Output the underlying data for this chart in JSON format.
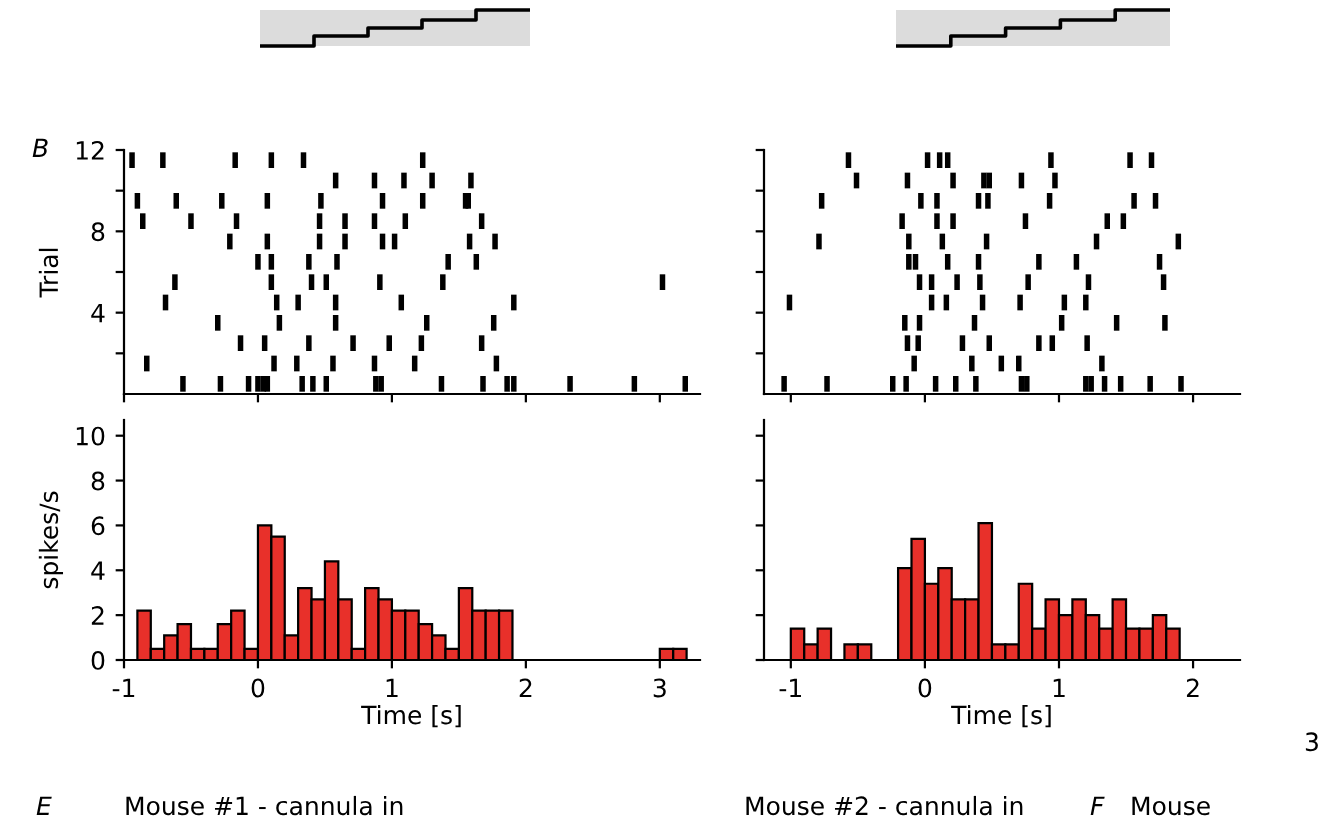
{
  "chart_data": [
    {
      "type": "scatter",
      "ylabel": "Trial",
      "color": "#000000",
      "xlim": [
        -1,
        3.3
      ],
      "xticks": [
        {
          "value": -1,
          "label": null
        },
        {
          "value": 0,
          "label": null
        },
        {
          "value": 1,
          "label": null
        },
        {
          "value": 2,
          "label": null
        },
        {
          "value": 3,
          "label": null
        }
      ],
      "ylim": [
        0,
        12
      ],
      "yticks": [
        {
          "value": 2,
          "label": null
        },
        4,
        {
          "value": 6,
          "label": null
        },
        8,
        {
          "value": 10,
          "label": null
        },
        12
      ],
      "tick_labels": "y",
      "annotations": [
        "B",
        "E",
        "Mouse #1 - cannula in"
      ],
      "x": [
        -0.94,
        -0.71,
        -0.17,
        0.1,
        0.34,
        1.23,
        0.58,
        0.87,
        1.09,
        1.3,
        1.59,
        -0.9,
        -0.61,
        -0.27,
        0.07,
        0.47,
        0.93,
        1.23,
        1.55,
        1.57,
        -0.86,
        -0.5,
        -0.16,
        0.46,
        0.65,
        0.87,
        1.1,
        1.67,
        -0.21,
        0.07,
        0.46,
        0.65,
        0.93,
        1.02,
        1.58,
        1.77,
        0.0,
        0.1,
        0.38,
        0.59,
        1.42,
        1.63,
        -0.62,
        0.1,
        0.4,
        0.51,
        0.91,
        1.38,
        3.02,
        -0.69,
        0.14,
        0.3,
        0.58,
        1.07,
        1.91,
        -0.3,
        0.16,
        0.58,
        1.26,
        1.76,
        -0.13,
        0.05,
        0.38,
        0.71,
        0.98,
        1.22,
        1.67,
        -0.83,
        0.12,
        0.29,
        0.56,
        0.87,
        1.17,
        1.78,
        -0.56,
        -0.28,
        -0.07,
        0.0,
        0.04,
        0.07,
        0.33,
        0.41,
        0.51,
        0.88,
        0.92,
        1.37,
        1.68,
        1.86,
        1.91,
        2.33,
        2.81,
        3.19
      ],
      "values": [
        11.5,
        11.5,
        11.5,
        11.5,
        11.5,
        11.5,
        10.5,
        10.5,
        10.5,
        10.5,
        10.5,
        9.5,
        9.5,
        9.5,
        9.5,
        9.5,
        9.5,
        9.5,
        9.5,
        9.5,
        8.5,
        8.5,
        8.5,
        8.5,
        8.5,
        8.5,
        8.5,
        8.5,
        7.5,
        7.5,
        7.5,
        7.5,
        7.5,
        7.5,
        7.5,
        7.5,
        6.5,
        6.5,
        6.5,
        6.5,
        6.5,
        6.5,
        5.5,
        5.5,
        5.5,
        5.5,
        5.5,
        5.5,
        5.5,
        4.5,
        4.5,
        4.5,
        4.5,
        4.5,
        4.5,
        3.5,
        3.5,
        3.5,
        3.5,
        3.5,
        2.5,
        2.5,
        2.5,
        2.5,
        2.5,
        2.5,
        2.5,
        1.5,
        1.5,
        1.5,
        1.5,
        1.5,
        1.5,
        1.5,
        0.5,
        0.5,
        0.5,
        0.5,
        0.5,
        0.5,
        0.5,
        0.5,
        0.5,
        0.5,
        0.5,
        0.5,
        0.5,
        0.5,
        0.5,
        0.5,
        0.5,
        0.5
      ]
    },
    {
      "type": "histogram",
      "ylabel": "spikes/s",
      "xlabel": "Time [s]",
      "color": "#e8302a",
      "xlim": [
        -1,
        3.3
      ],
      "ylim": [
        0,
        10.7
      ],
      "xticks": [
        -1,
        0,
        1,
        2,
        3
      ],
      "yticks": [
        0,
        2,
        4,
        6,
        8,
        10
      ],
      "bins": [
        -0.9,
        -0.8,
        -0.7,
        -0.6,
        -0.5,
        -0.4,
        -0.3,
        -0.2,
        -0.1,
        0.0,
        0.1,
        0.2,
        0.3,
        0.4,
        0.5,
        0.6,
        0.7,
        0.8,
        0.9,
        1.0,
        1.1,
        1.2,
        1.3,
        1.4,
        1.5,
        1.6,
        1.7,
        1.8,
        1.9,
        2.0,
        2.1,
        2.2,
        2.3,
        2.4,
        2.5,
        2.6,
        2.7,
        2.8,
        2.9,
        3.0,
        3.1,
        3.2
      ],
      "values": [
        2.2,
        0.5,
        1.1,
        1.6,
        0.5,
        0.5,
        1.6,
        2.2,
        0.5,
        6.0,
        5.5,
        1.1,
        3.2,
        2.7,
        4.4,
        2.7,
        0.5,
        3.2,
        2.7,
        2.2,
        2.2,
        1.6,
        1.1,
        0.5,
        3.2,
        2.2,
        2.2,
        2.2,
        0,
        0,
        0,
        0,
        0,
        0,
        0,
        0,
        0,
        0,
        0,
        0.5,
        0.5
      ]
    },
    {
      "type": "scatter",
      "color": "#000000",
      "xlim": [
        -1.2,
        2.35
      ],
      "xticks": [
        {
          "value": -1,
          "label": null
        },
        {
          "value": 0,
          "label": null
        },
        {
          "value": 1,
          "label": null
        },
        {
          "value": 2,
          "label": null
        }
      ],
      "ylim": [
        0,
        12
      ],
      "yticks": [
        {
          "value": 2,
          "label": null
        },
        {
          "value": 4,
          "label": null
        },
        {
          "value": 6,
          "label": null
        },
        {
          "value": 8,
          "label": null
        },
        {
          "value": 10,
          "label": null
        },
        {
          "value": 12,
          "label": null
        }
      ],
      "tick_labels": false,
      "annotations": [
        "Mouse #2 - cannula in",
        "F",
        "Mouse",
        "3"
      ],
      "x": [
        -0.57,
        0.02,
        0.11,
        0.17,
        0.94,
        1.53,
        1.69,
        -0.51,
        -0.13,
        0.21,
        0.44,
        0.48,
        0.72,
        0.97,
        -0.77,
        -0.03,
        0.09,
        0.4,
        0.47,
        0.93,
        1.56,
        1.72,
        -0.17,
        0.09,
        0.21,
        0.75,
        1.36,
        1.48,
        -0.79,
        -0.12,
        0.13,
        0.46,
        1.28,
        1.89,
        -0.12,
        -0.07,
        0.17,
        0.4,
        0.85,
        1.13,
        1.75,
        -0.04,
        0.05,
        0.24,
        0.41,
        0.77,
        1.22,
        1.78,
        -1.01,
        0.05,
        0.16,
        0.43,
        0.71,
        1.04,
        1.2,
        -0.15,
        -0.04,
        0.37,
        1.02,
        1.43,
        1.79,
        -0.13,
        -0.05,
        0.28,
        0.48,
        0.85,
        0.95,
        1.21,
        -0.08,
        0.35,
        0.57,
        0.7,
        1.32,
        -1.05,
        -0.73,
        -0.24,
        -0.14,
        0.08,
        0.23,
        0.38,
        0.72,
        0.76,
        1.2,
        1.24,
        1.34,
        1.46,
        1.68,
        1.91
      ],
      "values": [
        11.5,
        11.5,
        11.5,
        11.5,
        11.5,
        11.5,
        11.5,
        10.5,
        10.5,
        10.5,
        10.5,
        10.5,
        10.5,
        10.5,
        9.5,
        9.5,
        9.5,
        9.5,
        9.5,
        9.5,
        9.5,
        9.5,
        8.5,
        8.5,
        8.5,
        8.5,
        8.5,
        8.5,
        7.5,
        7.5,
        7.5,
        7.5,
        7.5,
        7.5,
        6.5,
        6.5,
        6.5,
        6.5,
        6.5,
        6.5,
        6.5,
        5.5,
        5.5,
        5.5,
        5.5,
        5.5,
        5.5,
        5.5,
        4.5,
        4.5,
        4.5,
        4.5,
        4.5,
        4.5,
        4.5,
        3.5,
        3.5,
        3.5,
        3.5,
        3.5,
        3.5,
        2.5,
        2.5,
        2.5,
        2.5,
        2.5,
        2.5,
        2.5,
        1.5,
        1.5,
        1.5,
        1.5,
        1.5,
        0.5,
        0.5,
        0.5,
        0.5,
        0.5,
        0.5,
        0.5,
        0.5,
        0.5,
        0.5,
        0.5,
        0.5,
        0.5,
        0.5,
        0.5
      ]
    },
    {
      "type": "histogram",
      "xlabel": "Time [s]",
      "color": "#e8302a",
      "xlim": [
        -1.2,
        2.35
      ],
      "ylim": [
        0,
        10.7
      ],
      "xticks": [
        -1,
        0,
        1,
        2
      ],
      "yticks": [
        {
          "value": 0,
          "label": null
        },
        {
          "value": 2,
          "label": null
        },
        {
          "value": 4,
          "label": null
        },
        {
          "value": 6,
          "label": null
        },
        {
          "value": 8,
          "label": null
        },
        {
          "value": 10,
          "label": null
        }
      ],
      "tick_labels": "x",
      "bins": [
        -1.0,
        -0.9,
        -0.8,
        -0.7,
        -0.6,
        -0.5,
        -0.4,
        -0.3,
        -0.2,
        -0.1,
        0.0,
        0.1,
        0.2,
        0.3,
        0.4,
        0.5,
        0.6,
        0.7,
        0.8,
        0.9,
        1.0,
        1.1,
        1.2,
        1.3,
        1.4,
        1.5,
        1.6,
        1.7,
        1.8,
        1.9
      ],
      "values": [
        1.4,
        0.7,
        1.4,
        0,
        0.7,
        0.7,
        0,
        0,
        4.1,
        5.4,
        3.4,
        4.1,
        2.7,
        2.7,
        6.1,
        0.7,
        0.7,
        3.4,
        1.4,
        2.7,
        2.0,
        2.7,
        2.0,
        1.4,
        2.7,
        1.4,
        1.4,
        2.0,
        1.4
      ]
    }
  ]
}
